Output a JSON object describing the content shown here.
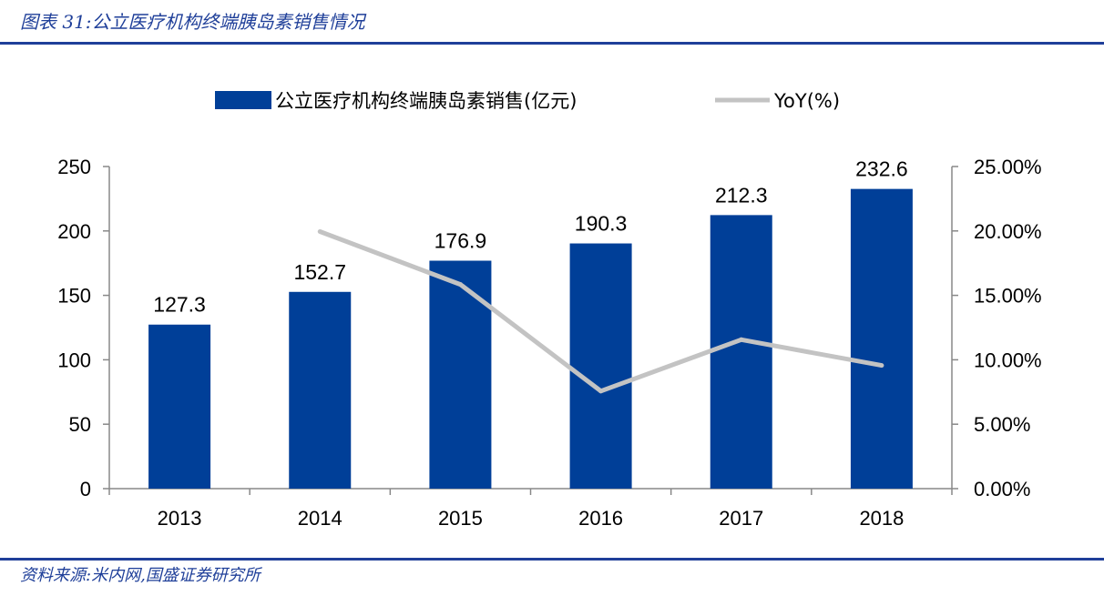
{
  "header": {
    "title": "图表 31:公立医疗机构终端胰岛素销售情况"
  },
  "footer": {
    "source": "资料来源:米内网,国盛证券研究所"
  },
  "colors": {
    "bar": "#003f98",
    "line": "#c3c3c3",
    "rule": "#1f3f99"
  },
  "chart_data": {
    "type": "bar",
    "categories": [
      "2013",
      "2014",
      "2015",
      "2016",
      "2017",
      "2018"
    ],
    "series": [
      {
        "name": "公立医疗机构终端胰岛素销售(亿元)",
        "type": "bar",
        "axis": "left",
        "values": [
          127.3,
          152.7,
          176.9,
          190.3,
          212.3,
          232.6
        ],
        "data_labels": [
          "127.3",
          "152.7",
          "176.9",
          "190.3",
          "212.3",
          "232.6"
        ]
      },
      {
        "name": "YoY(%)",
        "type": "line",
        "axis": "right",
        "values": [
          null,
          19.95,
          15.85,
          7.57,
          11.56,
          9.56
        ]
      }
    ],
    "y_left": {
      "ylim": [
        0,
        250
      ],
      "ticks": [
        0,
        50,
        100,
        150,
        200,
        250
      ],
      "tick_labels": [
        "0",
        "50",
        "100",
        "150",
        "200",
        "250"
      ]
    },
    "y_right": {
      "ylim": [
        0,
        25
      ],
      "ticks": [
        0,
        5,
        10,
        15,
        20,
        25
      ],
      "tick_labels": [
        "0.00%",
        "5.00%",
        "10.00%",
        "15.00%",
        "20.00%",
        "25.00%"
      ]
    },
    "legend": {
      "position": "top",
      "items": [
        "公立医疗机构终端胰岛素销售(亿元)",
        "YoY(%)"
      ]
    },
    "grid": false
  }
}
